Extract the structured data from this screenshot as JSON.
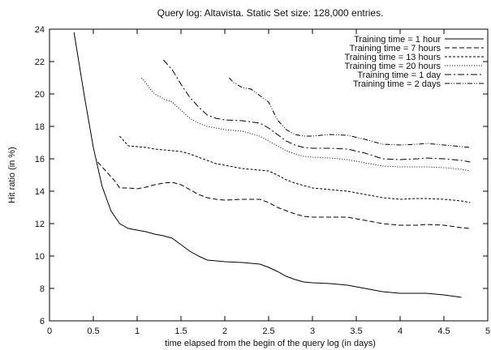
{
  "chart_data": {
    "type": "line",
    "title": "Query log: Altavista. Static Set size: 128,000 entries.",
    "xlabel": "time elapsed from the begin of the query log (in days)",
    "ylabel": "Hit ratio (in %)",
    "xlim": [
      0,
      5
    ],
    "ylim": [
      6,
      24
    ],
    "xticks": [
      0,
      0.5,
      1,
      1.5,
      2,
      2.5,
      3,
      3.5,
      4,
      4.5,
      5
    ],
    "yticks": [
      6,
      8,
      10,
      12,
      14,
      16,
      18,
      20,
      22,
      24
    ],
    "grid": false,
    "legend_position": "top-right",
    "series": [
      {
        "name": "Training time = 1 hour",
        "dash": "solid",
        "x": [
          0.28,
          0.4,
          0.5,
          0.6,
          0.7,
          0.8,
          0.9,
          1.0,
          1.1,
          1.2,
          1.3,
          1.4,
          1.5,
          1.6,
          1.7,
          1.8,
          1.9,
          2.0,
          2.2,
          2.4,
          2.5,
          2.6,
          2.7,
          2.8,
          2.9,
          3.0,
          3.2,
          3.4,
          3.6,
          3.8,
          4.0,
          4.2,
          4.3,
          4.5,
          4.7
        ],
        "y": [
          23.8,
          19.8,
          16.7,
          14.3,
          12.8,
          12.0,
          11.7,
          11.6,
          11.5,
          11.35,
          11.25,
          11.1,
          10.7,
          10.3,
          10.0,
          9.75,
          9.7,
          9.65,
          9.6,
          9.5,
          9.3,
          9.05,
          8.75,
          8.55,
          8.4,
          8.35,
          8.3,
          8.2,
          8.0,
          7.8,
          7.7,
          7.7,
          7.7,
          7.6,
          7.45
        ]
      },
      {
        "name": "Training time = 7 hours",
        "dash": "6,3",
        "x": [
          0.55,
          0.65,
          0.75,
          0.8,
          0.9,
          1.0,
          1.1,
          1.2,
          1.3,
          1.4,
          1.5,
          1.6,
          1.7,
          1.8,
          1.9,
          2.0,
          2.2,
          2.4,
          2.5,
          2.6,
          2.7,
          2.8,
          2.9,
          3.0,
          3.2,
          3.4,
          3.6,
          3.8,
          4.0,
          4.2,
          4.3,
          4.5,
          4.7,
          4.8
        ],
        "y": [
          15.8,
          15.2,
          14.6,
          14.2,
          14.2,
          14.15,
          14.25,
          14.4,
          14.5,
          14.55,
          14.4,
          14.1,
          13.8,
          13.6,
          13.5,
          13.45,
          13.5,
          13.5,
          13.3,
          13.0,
          12.8,
          12.6,
          12.45,
          12.4,
          12.4,
          12.4,
          12.2,
          12.0,
          11.9,
          11.9,
          11.95,
          11.9,
          11.75,
          11.7
        ]
      },
      {
        "name": "Training time = 13 hours",
        "dash": "3,2",
        "x": [
          0.8,
          0.85,
          0.9,
          1.0,
          1.1,
          1.2,
          1.3,
          1.4,
          1.5,
          1.6,
          1.7,
          1.8,
          1.9,
          2.0,
          2.2,
          2.4,
          2.5,
          2.6,
          2.7,
          2.8,
          2.9,
          3.0,
          3.2,
          3.4,
          3.6,
          3.8,
          4.0,
          4.2,
          4.3,
          4.5,
          4.7,
          4.8
        ],
        "y": [
          17.4,
          17.1,
          16.8,
          16.75,
          16.7,
          16.6,
          16.55,
          16.5,
          16.45,
          16.3,
          16.1,
          15.9,
          15.7,
          15.6,
          15.4,
          15.3,
          15.25,
          15.0,
          14.7,
          14.5,
          14.35,
          14.2,
          14.1,
          14.0,
          13.8,
          13.6,
          13.5,
          13.55,
          13.55,
          13.5,
          13.4,
          13.3
        ]
      },
      {
        "name": "Training time = 20 hours",
        "dash": "1,2",
        "x": [
          1.05,
          1.1,
          1.15,
          1.2,
          1.3,
          1.4,
          1.5,
          1.6,
          1.7,
          1.8,
          1.9,
          2.0,
          2.2,
          2.4,
          2.5,
          2.6,
          2.7,
          2.8,
          2.9,
          3.0,
          3.2,
          3.4,
          3.6,
          3.8,
          4.0,
          4.2,
          4.3,
          4.5,
          4.7,
          4.8
        ],
        "y": [
          21.0,
          20.7,
          20.3,
          20.0,
          19.7,
          19.5,
          19.0,
          18.5,
          18.2,
          18.0,
          17.9,
          17.8,
          17.7,
          17.4,
          17.1,
          16.8,
          16.5,
          16.3,
          16.15,
          16.1,
          16.05,
          15.95,
          15.75,
          15.55,
          15.5,
          15.5,
          15.5,
          15.45,
          15.35,
          15.25
        ]
      },
      {
        "name": "Training time = 1 day",
        "dash": "8,3,2,3",
        "x": [
          1.3,
          1.4,
          1.5,
          1.6,
          1.7,
          1.8,
          1.9,
          2.0,
          2.2,
          2.4,
          2.5,
          2.6,
          2.7,
          2.8,
          2.9,
          3.0,
          3.2,
          3.4,
          3.6,
          3.8,
          4.0,
          4.2,
          4.3,
          4.5,
          4.7,
          4.8
        ],
        "y": [
          22.1,
          21.5,
          20.6,
          19.8,
          19.2,
          18.7,
          18.5,
          18.4,
          18.35,
          18.2,
          17.9,
          17.5,
          17.1,
          16.85,
          16.7,
          16.65,
          16.65,
          16.6,
          16.35,
          16.0,
          15.95,
          16.0,
          16.05,
          16.0,
          15.9,
          15.8
        ]
      },
      {
        "name": "Training time = 2 days",
        "dash": "6,2,1,2,1,2",
        "x": [
          2.05,
          2.1,
          2.2,
          2.3,
          2.4,
          2.5,
          2.6,
          2.7,
          2.8,
          2.9,
          3.0,
          3.2,
          3.4,
          3.6,
          3.8,
          4.0,
          4.2,
          4.3,
          4.5,
          4.7,
          4.8
        ],
        "y": [
          21.0,
          20.7,
          20.4,
          20.3,
          19.9,
          19.5,
          18.4,
          17.8,
          17.5,
          17.4,
          17.4,
          17.5,
          17.45,
          17.2,
          16.9,
          16.85,
          16.9,
          16.95,
          16.85,
          16.75,
          16.7
        ]
      }
    ]
  }
}
